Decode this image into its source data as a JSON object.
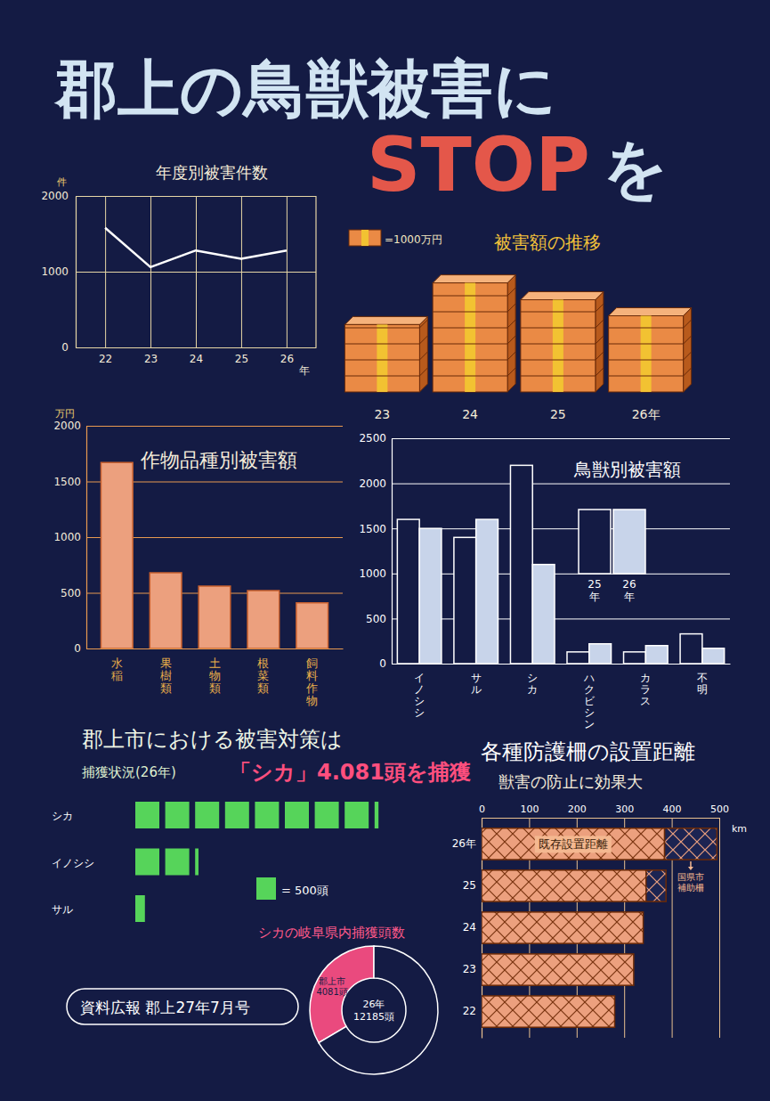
{
  "poster": {
    "title": "郡上の鳥獣被害に",
    "highlight": "STOP",
    "title_end": "を",
    "heading": "郡上市における被害対策は",
    "source": "資料広報 郡上27年7月号"
  },
  "chart_data": [
    {
      "type": "line",
      "title": "年度別被害件数",
      "y_label": "件",
      "x_label": "年",
      "categories": [
        "22",
        "23",
        "24",
        "25",
        "26"
      ],
      "values": [
        1580,
        1060,
        1280,
        1170,
        1280
      ],
      "color": "#ffffff",
      "ylim": [
        0,
        2000
      ],
      "yticks": [
        0,
        1000,
        2000
      ],
      "grid": true
    },
    {
      "type": "pictogram",
      "title": "被害額の推移",
      "categories": [
        "23",
        "24",
        "25",
        "26年"
      ],
      "values": [
        4200,
        6800,
        5750,
        4750
      ],
      "unit_value": 1000,
      "unit_label": "=1000万円",
      "color": "#ea8a45"
    },
    {
      "type": "bar",
      "title": "作物品種別被害額",
      "y_label": "万円",
      "categories": [
        "水稲",
        "果樹類",
        "土物類",
        "根菜類",
        "飼料作物"
      ],
      "values": [
        1670,
        680,
        560,
        520,
        410
      ],
      "color": "#eca07e",
      "ylim": [
        0,
        2000
      ],
      "yticks": [
        0,
        500,
        1000,
        1500,
        2000
      ],
      "grid": true
    },
    {
      "type": "bar",
      "title": "鳥獣別被害額",
      "categories": [
        "イノシシ",
        "サル",
        "シカ",
        "ハクビシン",
        "カラス",
        "不明"
      ],
      "series": [
        {
          "name": "25年",
          "color": "#141b44",
          "values": [
            1600,
            1400,
            2200,
            130,
            130,
            330
          ]
        },
        {
          "name": "26年",
          "color": "#c8d4ea",
          "values": [
            1500,
            1600,
            1100,
            220,
            200,
            170
          ]
        }
      ],
      "ylim": [
        0,
        2500
      ],
      "yticks": [
        0,
        500,
        1000,
        1500,
        2000,
        2500
      ],
      "grid": true,
      "legend": "upper right"
    },
    {
      "type": "pictogram",
      "title": "捕獲状況(26年)",
      "annotation": "「シカ」4.081頭を捕獲",
      "orientation": "horizontal",
      "categories": [
        "シカ",
        "イノシシ",
        "サル"
      ],
      "values": [
        4081,
        1070,
        200
      ],
      "unit_value": 500,
      "unit_label": "= 500頭",
      "color": "#56d45a"
    },
    {
      "type": "donut",
      "title": "シカの岐阜県内捕獲頭数",
      "categories": [
        "郡上市",
        null
      ],
      "values": [
        4081,
        8104
      ],
      "value_labels": [
        "4081頭",
        null
      ],
      "colors": [
        "#ea4a7e",
        "#141b44"
      ],
      "center_text": [
        "26年",
        "12185頭"
      ]
    },
    {
      "type": "bar",
      "title": "各種防護柵の設置距離",
      "subtitle": "獣害の防止に効果大",
      "x_label": "km",
      "orientation": "horizontal",
      "stacked": true,
      "categories": [
        "26年",
        "25",
        "24",
        "23",
        "22"
      ],
      "series": [
        {
          "name": "既存設置距離",
          "color": "#eca07e",
          "values": [
            385,
            346,
            340,
            320,
            280
          ]
        },
        {
          "name": "国県市補助柵",
          "color": "#1c2452",
          "values": [
            110,
            42,
            null,
            null,
            null
          ]
        }
      ],
      "xlim": [
        0,
        500
      ],
      "xticks": [
        0,
        100,
        200,
        300,
        400,
        500
      ],
      "grid": true
    }
  ]
}
